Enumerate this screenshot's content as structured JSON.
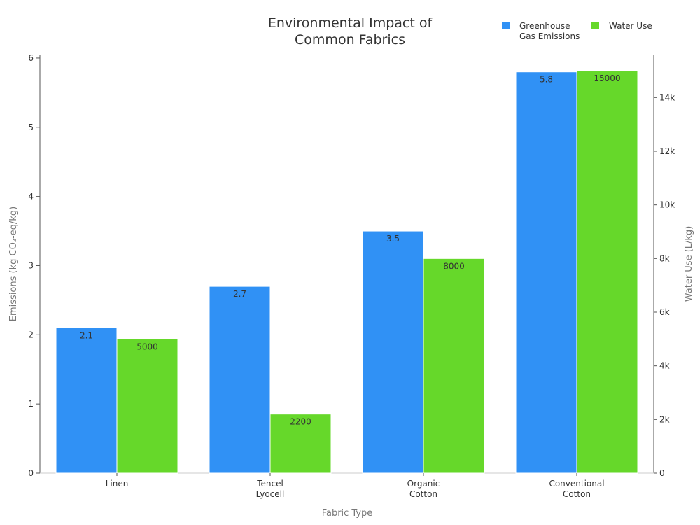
{
  "chart_data": {
    "type": "bar",
    "title_lines": [
      "Environmental Impact of",
      "Common Fabrics"
    ],
    "xlabel": "Fabric Type",
    "ylabel_left": "Emissions (kg CO₂-eq/kg)",
    "ylabel_right": "Water Use (L/kg)",
    "categories": [
      [
        "Linen"
      ],
      [
        "Tencel",
        "Lyocell"
      ],
      [
        "Organic",
        "Cotton"
      ],
      [
        "Conventional",
        "Cotton"
      ]
    ],
    "series": [
      {
        "name_lines": [
          "Greenhouse",
          "Gas Emissions"
        ],
        "axis": "left",
        "color": "#3091f5",
        "values": [
          2.1,
          2.7,
          3.5,
          5.8
        ],
        "labels": [
          "2.1",
          "2.7",
          "3.5",
          "5.8"
        ]
      },
      {
        "name_lines": [
          "Water Use"
        ],
        "axis": "right",
        "color": "#66d82a",
        "values": [
          5000,
          2200,
          8000,
          15000
        ],
        "labels": [
          "5000",
          "2200",
          "8000",
          "15000"
        ]
      }
    ],
    "ylim_left": [
      0,
      6.05
    ],
    "yticks_left": [
      0,
      1,
      2,
      3,
      4,
      5,
      6
    ],
    "ytick_labels_left": [
      "0",
      "1",
      "2",
      "3",
      "4",
      "5",
      "6"
    ],
    "ylim_right": [
      0,
      15600
    ],
    "yticks_right": [
      0,
      2000,
      4000,
      6000,
      8000,
      10000,
      12000,
      14000
    ],
    "ytick_labels_right": [
      "0",
      "2k",
      "4k",
      "6k",
      "8k",
      "10k",
      "12k",
      "14k"
    ],
    "legend_position": "top-right",
    "grid": false
  }
}
